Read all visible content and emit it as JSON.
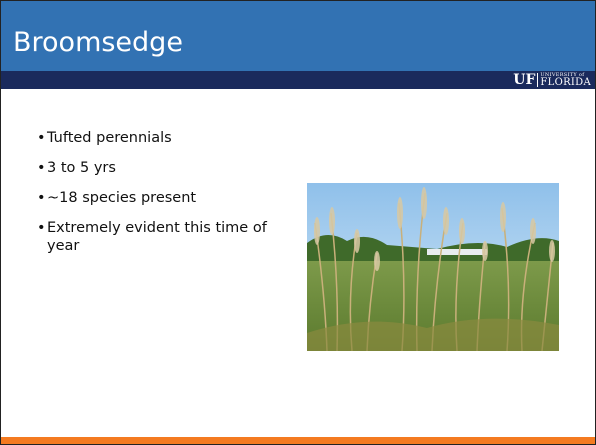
{
  "title": "Broomsedge",
  "logo": {
    "uf": "UF",
    "university": "UNIVERSITY of",
    "florida": "FLORIDA"
  },
  "bullets": [
    "Tufted perennials",
    "3 to 5 yrs",
    "~18 species present",
    "Extremely evident this time of year"
  ]
}
